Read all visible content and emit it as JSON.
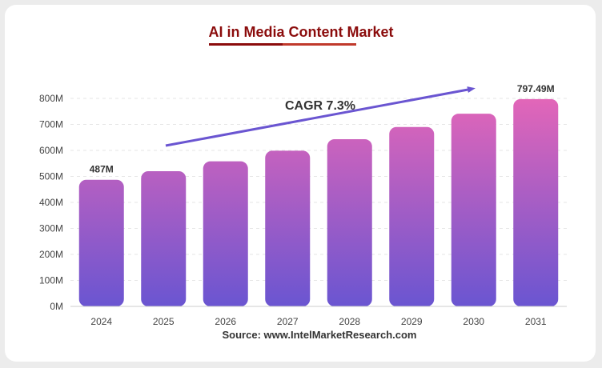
{
  "chart_data": {
    "type": "bar",
    "title": "AI in Media Content Market",
    "categories": [
      "2024",
      "2025",
      "2026",
      "2027",
      "2028",
      "2029",
      "2030",
      "2031"
    ],
    "values": [
      487,
      520,
      558,
      599,
      643,
      690,
      741,
      797.49
    ],
    "value_labels": [
      "487M",
      "",
      "",
      "",
      "",
      "",
      "",
      "797.49M"
    ],
    "ylim": [
      0,
      800
    ],
    "yticks": [
      "0M",
      "100M",
      "200M",
      "300M",
      "400M",
      "500M",
      "600M",
      "700M",
      "800M"
    ],
    "annotation": "CAGR 7.3%",
    "source": "Source: www.IntelMarketResearch.com",
    "grid": true,
    "colors": {
      "bar_top": "#e466b8",
      "bar_bottom": "#6a55d1",
      "arrow": "#6a55d1",
      "title": "#8b0c0c"
    }
  }
}
